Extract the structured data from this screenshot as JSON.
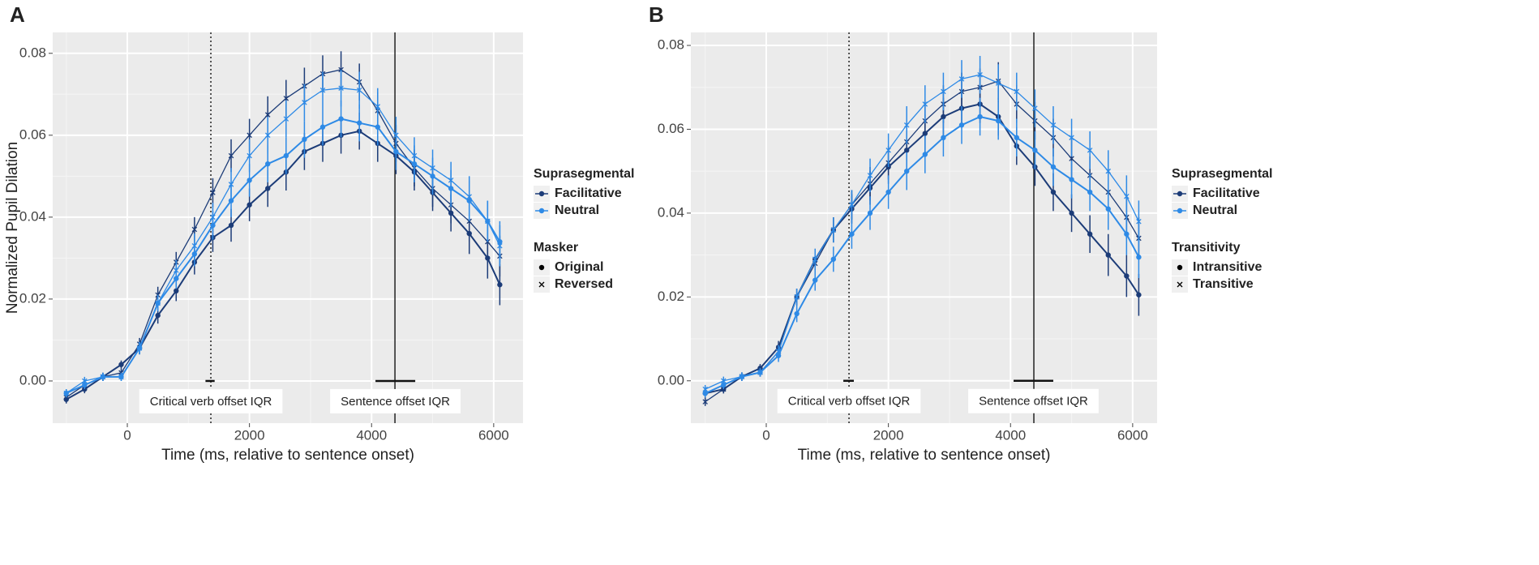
{
  "chart_data": [
    {
      "type": "line",
      "panel": "A",
      "xlabel": "Time (ms, relative to sentence onset)",
      "ylabel": "Normalized Pupil Dilation",
      "xlim": [
        -1222,
        6480
      ],
      "ylim": [
        -0.0103,
        0.0851
      ],
      "xticks": [
        0,
        2000,
        4000,
        6000
      ],
      "yticks": [
        {
          "value": 0,
          "label": "0.00"
        },
        {
          "value": 0.02,
          "label": "0.02"
        },
        {
          "value": 0.04,
          "label": "0.04"
        },
        {
          "value": 0.06,
          "label": "0.06"
        },
        {
          "value": 0.08,
          "label": "0.08"
        }
      ],
      "grid": true,
      "x": [
        -1000,
        -700,
        -400,
        -100,
        200,
        500,
        800,
        1100,
        1400,
        1700,
        2000,
        2300,
        2600,
        2900,
        3200,
        3500,
        3800,
        4100,
        4400,
        4700,
        5000,
        5300,
        5600,
        5900,
        6100
      ],
      "series": [
        {
          "color": "#1c3c78",
          "shape": "dot",
          "values": [
            -0.0045,
            -0.002,
            0.001,
            0.004,
            0.008,
            0.016,
            0.022,
            0.029,
            0.035,
            0.038,
            0.043,
            0.047,
            0.051,
            0.056,
            0.058,
            0.06,
            0.061,
            0.058,
            0.055,
            0.051,
            0.046,
            0.041,
            0.036,
            0.03,
            0.0235
          ],
          "errors": [
            0.001,
            0.001,
            0.001,
            0.001,
            0.0015,
            0.002,
            0.0025,
            0.003,
            0.0035,
            0.004,
            0.004,
            0.0045,
            0.0045,
            0.0045,
            0.0045,
            0.0045,
            0.0045,
            0.0045,
            0.0045,
            0.0045,
            0.0045,
            0.0045,
            0.005,
            0.005,
            0.005
          ]
        },
        {
          "color": "#1c3c78",
          "shape": "x",
          "values": [
            -0.004,
            -0.001,
            0.001,
            0.002,
            0.009,
            0.021,
            0.029,
            0.037,
            0.046,
            0.055,
            0.06,
            0.065,
            0.069,
            0.072,
            0.075,
            0.076,
            0.073,
            0.066,
            0.058,
            0.052,
            0.047,
            0.043,
            0.039,
            0.034,
            0.0305
          ],
          "errors": [
            0.001,
            0.001,
            0.001,
            0.001,
            0.0015,
            0.002,
            0.0025,
            0.003,
            0.0035,
            0.004,
            0.004,
            0.0045,
            0.0045,
            0.0045,
            0.0045,
            0.0045,
            0.0045,
            0.0045,
            0.0045,
            0.0045,
            0.0045,
            0.0045,
            0.005,
            0.005,
            0.005
          ]
        },
        {
          "color": "#2e8ae6",
          "shape": "dot",
          "values": [
            -0.003,
            -0.001,
            0.001,
            0.001,
            0.008,
            0.019,
            0.025,
            0.031,
            0.038,
            0.044,
            0.049,
            0.053,
            0.055,
            0.059,
            0.062,
            0.064,
            0.063,
            0.062,
            0.056,
            0.053,
            0.05,
            0.047,
            0.044,
            0.039,
            0.034
          ],
          "errors": [
            0.001,
            0.001,
            0.001,
            0.001,
            0.0015,
            0.002,
            0.0025,
            0.003,
            0.0035,
            0.004,
            0.004,
            0.0045,
            0.0045,
            0.0045,
            0.0045,
            0.0045,
            0.0045,
            0.0045,
            0.0045,
            0.0045,
            0.0045,
            0.0045,
            0.005,
            0.005,
            0.005
          ]
        },
        {
          "color": "#2e8ae6",
          "shape": "x",
          "values": [
            -0.003,
            0,
            0.001,
            0.001,
            0.008,
            0.019,
            0.027,
            0.033,
            0.04,
            0.048,
            0.055,
            0.06,
            0.064,
            0.068,
            0.071,
            0.0715,
            0.071,
            0.067,
            0.06,
            0.055,
            0.052,
            0.049,
            0.045,
            0.039,
            0.033
          ],
          "errors": [
            0.001,
            0.001,
            0.001,
            0.001,
            0.0015,
            0.002,
            0.0025,
            0.003,
            0.0035,
            0.004,
            0.004,
            0.0045,
            0.0045,
            0.0045,
            0.0045,
            0.0045,
            0.0045,
            0.0045,
            0.0045,
            0.0045,
            0.0045,
            0.0045,
            0.005,
            0.005,
            0.005
          ]
        }
      ],
      "vlines": [
        {
          "value": 1368,
          "style": "dotted"
        },
        {
          "value": 4383,
          "style": "solid"
        }
      ],
      "iqr": [
        {
          "range": [
            1280,
            1430
          ],
          "label": "Critical verb offset IQR"
        },
        {
          "range": [
            4064,
            4715
          ],
          "label": "Sentence offset IQR"
        }
      ],
      "legends": [
        {
          "title": "Suprasegmental",
          "items": [
            {
              "label": "Facilitative",
              "color": "#1c3c78"
            },
            {
              "label": "Neutral",
              "color": "#2e8ae6"
            }
          ]
        },
        {
          "title": "Masker",
          "items": [
            {
              "label": "Original",
              "shape": "dot"
            },
            {
              "label": "Reversed",
              "shape": "x"
            }
          ]
        }
      ]
    },
    {
      "type": "line",
      "panel": "B",
      "xlabel": "Time (ms, relative to sentence onset)",
      "xlim": [
        -1235,
        6400
      ],
      "ylim": [
        -0.0101,
        0.0831
      ],
      "xticks": [
        0,
        2000,
        4000,
        6000
      ],
      "yticks": [
        {
          "value": 0,
          "label": "0.00"
        },
        {
          "value": 0.02,
          "label": "0.02"
        },
        {
          "value": 0.04,
          "label": "0.04"
        },
        {
          "value": 0.06,
          "label": "0.06"
        },
        {
          "value": 0.08,
          "label": "0.08"
        }
      ],
      "grid": true,
      "x": [
        -1000,
        -700,
        -400,
        -100,
        200,
        500,
        800,
        1100,
        1400,
        1700,
        2000,
        2300,
        2600,
        2900,
        3200,
        3500,
        3800,
        4100,
        4400,
        4700,
        5000,
        5300,
        5600,
        5900,
        6100
      ],
      "series": [
        {
          "color": "#1c3c78",
          "shape": "dot",
          "values": [
            -0.003,
            -0.002,
            0.001,
            0.003,
            0.008,
            0.02,
            0.029,
            0.036,
            0.041,
            0.046,
            0.051,
            0.055,
            0.059,
            0.063,
            0.065,
            0.066,
            0.063,
            0.056,
            0.051,
            0.045,
            0.04,
            0.035,
            0.03,
            0.025,
            0.0205
          ],
          "errors": [
            0.001,
            0.001,
            0.001,
            0.001,
            0.0015,
            0.002,
            0.0025,
            0.003,
            0.0035,
            0.004,
            0.004,
            0.0045,
            0.0045,
            0.0045,
            0.0045,
            0.0045,
            0.0045,
            0.0045,
            0.0045,
            0.0045,
            0.0045,
            0.0045,
            0.005,
            0.005,
            0.005
          ]
        },
        {
          "color": "#1c3c78",
          "shape": "x",
          "values": [
            -0.005,
            -0.002,
            0.001,
            0.002,
            0.007,
            0.02,
            0.028,
            0.036,
            0.042,
            0.047,
            0.052,
            0.057,
            0.062,
            0.066,
            0.069,
            0.07,
            0.0715,
            0.066,
            0.062,
            0.058,
            0.053,
            0.049,
            0.045,
            0.039,
            0.034
          ],
          "errors": [
            0.001,
            0.001,
            0.001,
            0.001,
            0.0015,
            0.002,
            0.0025,
            0.003,
            0.0035,
            0.004,
            0.004,
            0.0045,
            0.0045,
            0.0045,
            0.0045,
            0.0045,
            0.0045,
            0.0045,
            0.0045,
            0.0045,
            0.0045,
            0.0045,
            0.005,
            0.005,
            0.005
          ]
        },
        {
          "color": "#2e8ae6",
          "shape": "dot",
          "values": [
            -0.003,
            -0.001,
            0.001,
            0.002,
            0.006,
            0.016,
            0.024,
            0.029,
            0.035,
            0.04,
            0.045,
            0.05,
            0.054,
            0.058,
            0.061,
            0.063,
            0.062,
            0.058,
            0.055,
            0.051,
            0.048,
            0.045,
            0.041,
            0.035,
            0.0295
          ],
          "errors": [
            0.001,
            0.001,
            0.001,
            0.001,
            0.0015,
            0.002,
            0.0025,
            0.003,
            0.0035,
            0.004,
            0.004,
            0.0045,
            0.0045,
            0.0045,
            0.0045,
            0.0045,
            0.0045,
            0.0045,
            0.0045,
            0.0045,
            0.0045,
            0.0045,
            0.005,
            0.005,
            0.005
          ]
        },
        {
          "color": "#2e8ae6",
          "shape": "x",
          "values": [
            -0.002,
            0,
            0.001,
            0.002,
            0.007,
            0.02,
            0.029,
            0.036,
            0.042,
            0.049,
            0.055,
            0.061,
            0.066,
            0.069,
            0.072,
            0.073,
            0.071,
            0.069,
            0.065,
            0.061,
            0.058,
            0.055,
            0.05,
            0.044,
            0.038
          ],
          "errors": [
            0.001,
            0.001,
            0.001,
            0.001,
            0.0015,
            0.002,
            0.0025,
            0.003,
            0.0035,
            0.004,
            0.004,
            0.0045,
            0.0045,
            0.0045,
            0.0045,
            0.0045,
            0.0045,
            0.0045,
            0.0045,
            0.0045,
            0.0045,
            0.0045,
            0.005,
            0.005,
            0.005
          ]
        }
      ],
      "vlines": [
        {
          "value": 1355,
          "style": "dotted"
        },
        {
          "value": 4382,
          "style": "solid"
        }
      ],
      "iqr": [
        {
          "range": [
            1262,
            1434
          ],
          "label": "Critical verb offset IQR"
        },
        {
          "range": [
            4050,
            4700
          ],
          "label": "Sentence offset IQR"
        }
      ],
      "legends": [
        {
          "title": "Suprasegmental",
          "items": [
            {
              "label": "Facilitative",
              "color": "#1c3c78"
            },
            {
              "label": "Neutral",
              "color": "#2e8ae6"
            }
          ]
        },
        {
          "title": "Transitivity",
          "items": [
            {
              "label": "Intransitive",
              "shape": "dot"
            },
            {
              "label": "Transitive",
              "shape": "x"
            }
          ]
        }
      ]
    }
  ]
}
